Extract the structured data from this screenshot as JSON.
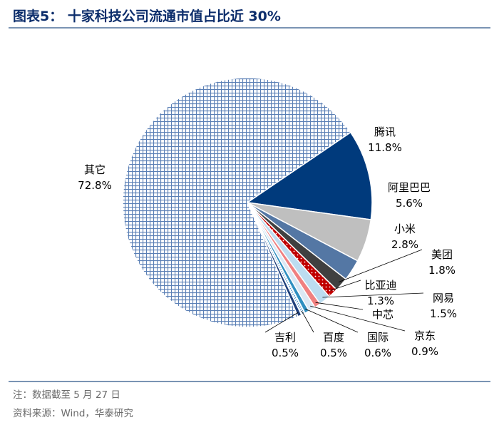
{
  "page": {
    "title": "图表5：  十家科技公司流通市值占比近 30%",
    "note": "注：数据截至 5 月 27 日",
    "source": "资料来源：Wind，华泰研究"
  },
  "chart_data": {
    "type": "pie",
    "title": "十家科技公司流通市值占比近 30%",
    "slices": [
      {
        "name": "腾讯",
        "value": 11.8,
        "pct_label": "11.8%",
        "color": "#003a7c",
        "pattern": "solid"
      },
      {
        "name": "阿里巴巴",
        "value": 5.6,
        "pct_label": "5.6%",
        "color": "#bfbfbf",
        "pattern": "solid"
      },
      {
        "name": "小米",
        "value": 2.8,
        "pct_label": "2.8%",
        "color": "#5477a4",
        "pattern": "solid"
      },
      {
        "name": "美团",
        "value": 1.8,
        "pct_label": "1.8%",
        "color": "#404040",
        "pattern": "solid"
      },
      {
        "name": "比亚迪",
        "value": 1.3,
        "pct_label": "1.3%",
        "color": "#c00000",
        "pattern": "dots"
      },
      {
        "name": "网易",
        "value": 1.5,
        "pct_label": "1.5%",
        "color": "#bcdcf0",
        "pattern": "solid"
      },
      {
        "name": "中芯",
        "value": 0.8,
        "pct_label": "",
        "color": "#f08080",
        "pattern": "solid"
      },
      {
        "name": "京东",
        "value": 0.9,
        "pct_label": "0.9%",
        "color": "#dbe8f4",
        "pattern": "solid"
      },
      {
        "name": "国际",
        "value": 0.6,
        "pct_label": "0.6%",
        "color": "#2f8fc0",
        "pattern": "solid"
      },
      {
        "name": "百度",
        "value": 0.5,
        "pct_label": "0.5%",
        "color": "#4a8fc8",
        "pattern": "hatch"
      },
      {
        "name": "吉利",
        "value": 0.5,
        "pct_label": "0.5%",
        "color": "#1f3f7a",
        "pattern": "solid"
      },
      {
        "name": "其它",
        "value": 72.8,
        "pct_label": "72.8%",
        "color": "#5a7fb5",
        "pattern": "grid"
      }
    ]
  }
}
